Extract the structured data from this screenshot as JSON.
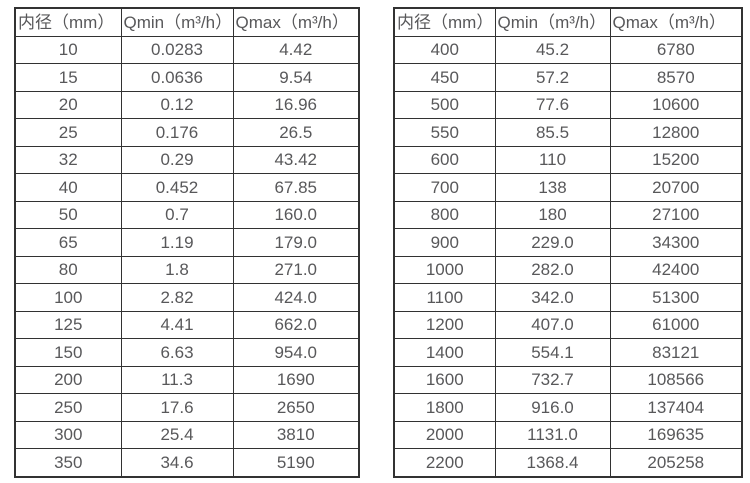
{
  "colors": {
    "background": "#ffffff",
    "border": "#323232",
    "text": "#58585a"
  },
  "left_table": {
    "headers": [
      "内径（mm）",
      "Qmin（m³/h）",
      "Qmax（m³/h）"
    ],
    "rows": [
      [
        "10",
        "0.0283",
        "4.42"
      ],
      [
        "15",
        "0.0636",
        "9.54"
      ],
      [
        "20",
        "0.12",
        "16.96"
      ],
      [
        "25",
        "0.176",
        "26.5"
      ],
      [
        "32",
        "0.29",
        "43.42"
      ],
      [
        "40",
        "0.452",
        "67.85"
      ],
      [
        "50",
        "0.7",
        "160.0"
      ],
      [
        "65",
        "1.19",
        "179.0"
      ],
      [
        "80",
        "1.8",
        "271.0"
      ],
      [
        "100",
        "2.82",
        "424.0"
      ],
      [
        "125",
        "4.41",
        "662.0"
      ],
      [
        "150",
        "6.63",
        "954.0"
      ],
      [
        "200",
        "11.3",
        "1690"
      ],
      [
        "250",
        "17.6",
        "2650"
      ],
      [
        "300",
        "25.4",
        "3810"
      ],
      [
        "350",
        "34.6",
        "5190"
      ]
    ]
  },
  "right_table": {
    "headers": [
      "内径（mm）",
      "Qmin（m³/h）",
      "Qmax（m³/h）"
    ],
    "rows": [
      [
        "400",
        "45.2",
        "6780"
      ],
      [
        "450",
        "57.2",
        "8570"
      ],
      [
        "500",
        "77.6",
        "10600"
      ],
      [
        "550",
        "85.5",
        "12800"
      ],
      [
        "600",
        "110",
        "15200"
      ],
      [
        "700",
        "138",
        "20700"
      ],
      [
        "800",
        "180",
        "27100"
      ],
      [
        "900",
        "229.0",
        "34300"
      ],
      [
        "1000",
        "282.0",
        "42400"
      ],
      [
        "1100",
        "342.0",
        "51300"
      ],
      [
        "1200",
        "407.0",
        "61000"
      ],
      [
        "1400",
        "554.1",
        "83121"
      ],
      [
        "1600",
        "732.7",
        "108566"
      ],
      [
        "1800",
        "916.0",
        "137404"
      ],
      [
        "2000",
        "1131.0",
        "169635"
      ],
      [
        "2200",
        "1368.4",
        "205258"
      ]
    ]
  }
}
